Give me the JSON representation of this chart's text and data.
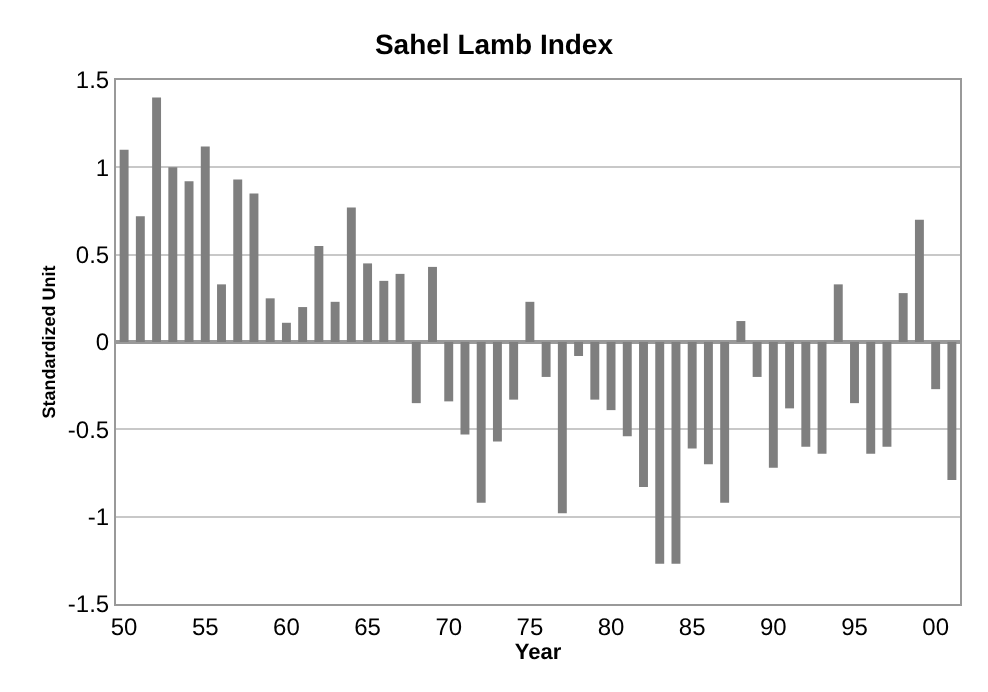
{
  "chart_data": {
    "type": "bar",
    "title": "Sahel Lamb Index",
    "xlabel": "Year",
    "ylabel": "Standardized Unit",
    "x": [
      1950,
      1951,
      1952,
      1953,
      1954,
      1955,
      1956,
      1957,
      1958,
      1959,
      1960,
      1961,
      1962,
      1963,
      1964,
      1965,
      1966,
      1967,
      1968,
      1969,
      1970,
      1971,
      1972,
      1973,
      1974,
      1975,
      1976,
      1977,
      1978,
      1979,
      1980,
      1981,
      1982,
      1983,
      1984,
      1985,
      1986,
      1987,
      1988,
      1989,
      1990,
      1991,
      1992,
      1993,
      1994,
      1995,
      1996,
      1997,
      1998,
      1999,
      2000,
      2001
    ],
    "values": [
      1.1,
      0.72,
      1.4,
      1.0,
      0.92,
      1.12,
      0.33,
      0.93,
      0.85,
      0.25,
      0.11,
      0.2,
      0.55,
      0.23,
      0.77,
      0.45,
      0.35,
      0.39,
      -0.35,
      0.43,
      -0.34,
      -0.53,
      -0.92,
      -0.57,
      -0.33,
      0.23,
      -0.2,
      -0.98,
      -0.08,
      -0.33,
      -0.39,
      -0.54,
      -0.83,
      -1.27,
      -1.27,
      -0.61,
      -0.7,
      -0.92,
      0.12,
      -0.2,
      -0.72,
      -0.38,
      -0.6,
      -0.64,
      0.33,
      -0.35,
      -0.64,
      -0.6,
      0.28,
      0.7,
      -0.27,
      -0.79
    ],
    "color": "#7f7f7f",
    "xlim": [
      1949.5,
      2001.5
    ],
    "xticks": [
      {
        "value": 1950,
        "label": "50"
      },
      {
        "value": 1955,
        "label": "55"
      },
      {
        "value": 1960,
        "label": "60"
      },
      {
        "value": 1965,
        "label": "65"
      },
      {
        "value": 1970,
        "label": "70"
      },
      {
        "value": 1975,
        "label": "75"
      },
      {
        "value": 1980,
        "label": "80"
      },
      {
        "value": 1985,
        "label": "85"
      },
      {
        "value": 1990,
        "label": "90"
      },
      {
        "value": 1995,
        "label": "95"
      },
      {
        "value": 2000,
        "label": "00"
      }
    ],
    "ylim": [
      -1.5,
      1.5
    ],
    "yticks": [
      -1.5,
      -1,
      -0.5,
      0,
      0.5,
      1,
      1.5
    ],
    "grid": "y"
  }
}
